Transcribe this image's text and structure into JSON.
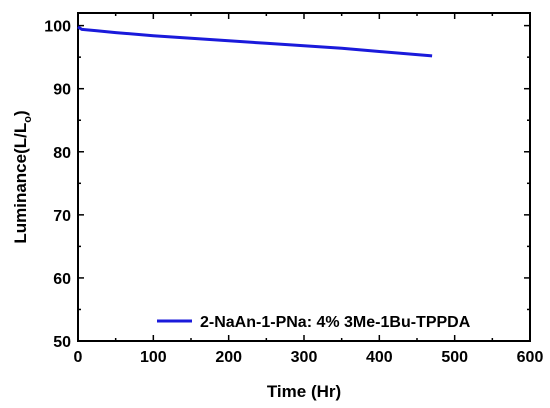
{
  "chart_data": {
    "type": "line",
    "xlabel": "Time (Hr)",
    "ylabel_main": "Luminance(L/L",
    "ylabel_sub": "o",
    "ylabel_tail": ")",
    "xlim": [
      0,
      600
    ],
    "ylim": [
      50,
      102
    ],
    "xticks": [
      0,
      100,
      200,
      300,
      400,
      500,
      600
    ],
    "yticks": [
      50,
      60,
      70,
      80,
      90,
      100
    ],
    "grid": false,
    "legend_position": "bottom-right",
    "series": [
      {
        "name": "2-NaAn-1-PNa: 4% 3Me-1Bu-TPPDA",
        "color": "#1a1adb",
        "x": [
          0,
          5,
          25,
          50,
          100,
          150,
          200,
          250,
          300,
          350,
          400,
          450,
          470
        ],
        "y": [
          99.8,
          99.4,
          99.2,
          98.9,
          98.4,
          98.0,
          97.6,
          97.2,
          96.8,
          96.4,
          95.9,
          95.4,
          95.2
        ]
      }
    ]
  }
}
